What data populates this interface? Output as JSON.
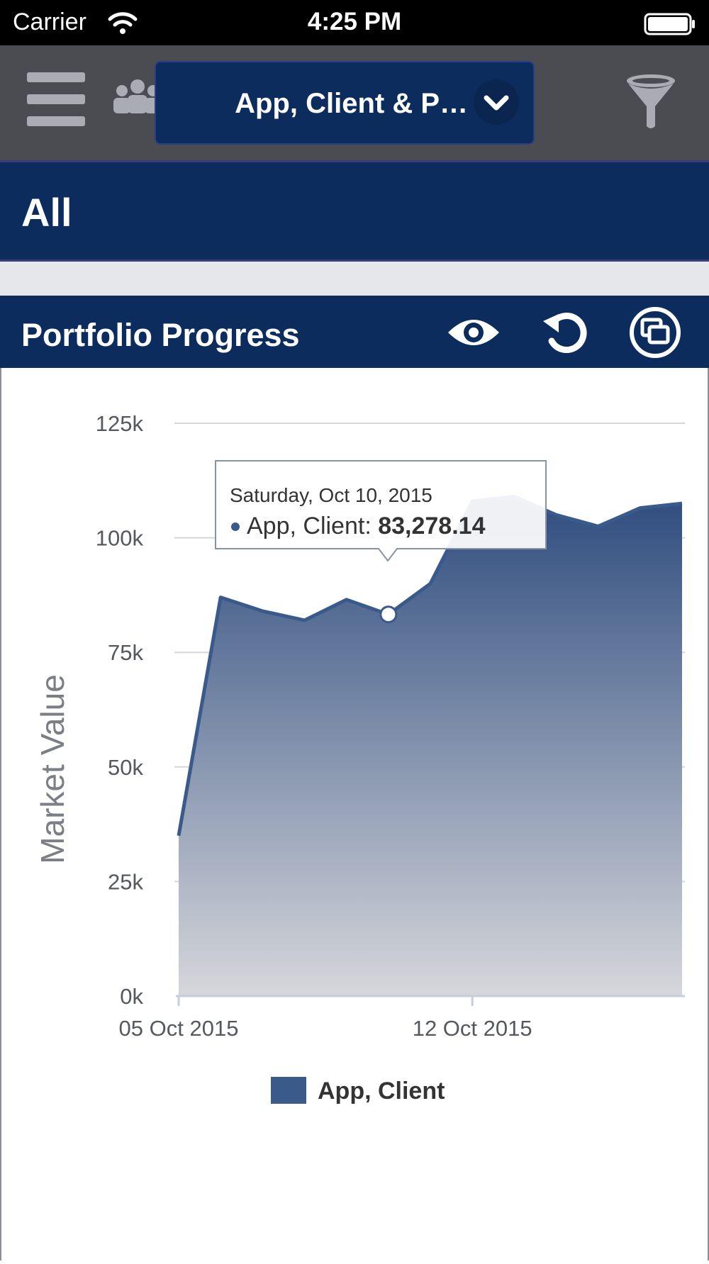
{
  "status_bar": {
    "carrier": "Carrier",
    "time": "4:25 PM"
  },
  "toolbar": {
    "selector_label": "App, Client & P…",
    "menu_icon": "hamburger-menu-icon",
    "people_icon": "people-icon",
    "filter_icon": "funnel-filter-icon"
  },
  "section": {
    "title": "All"
  },
  "panel": {
    "title": "Portfolio Progress",
    "icons": [
      "eye-icon",
      "refresh-icon",
      "windows-icon"
    ]
  },
  "colors": {
    "navy": "#0d2c5e",
    "series": "#3a5a8c",
    "toolbar": "#4b4c52"
  },
  "tooltip": {
    "date": "Saturday, Oct 10, 2015",
    "series_label": "App, Client: ",
    "value": "83,278.14"
  },
  "legend": {
    "label": "App, Client"
  },
  "chart_data": {
    "type": "area",
    "title": "",
    "xlabel": "",
    "ylabel": "Market Value",
    "y_ticks": [
      "0k",
      "25k",
      "50k",
      "75k",
      "100k",
      "125k"
    ],
    "x_tick_labels": [
      "05 Oct 2015",
      "12 Oct 2015"
    ],
    "ylim": [
      0,
      125000
    ],
    "grid": true,
    "legend_position": "bottom",
    "series": [
      {
        "name": "App, Client",
        "x": [
          "2015-10-05",
          "2015-10-06",
          "2015-10-07",
          "2015-10-08",
          "2015-10-09",
          "2015-10-10",
          "2015-10-11",
          "2015-10-12",
          "2015-10-13",
          "2015-10-14",
          "2015-10-15",
          "2015-10-16",
          "2015-10-17"
        ],
        "values": [
          35000,
          87000,
          84000,
          82000,
          86500,
          83278.14,
          90000,
          108000,
          109000,
          105000,
          102500,
          106500,
          107500
        ]
      }
    ]
  }
}
